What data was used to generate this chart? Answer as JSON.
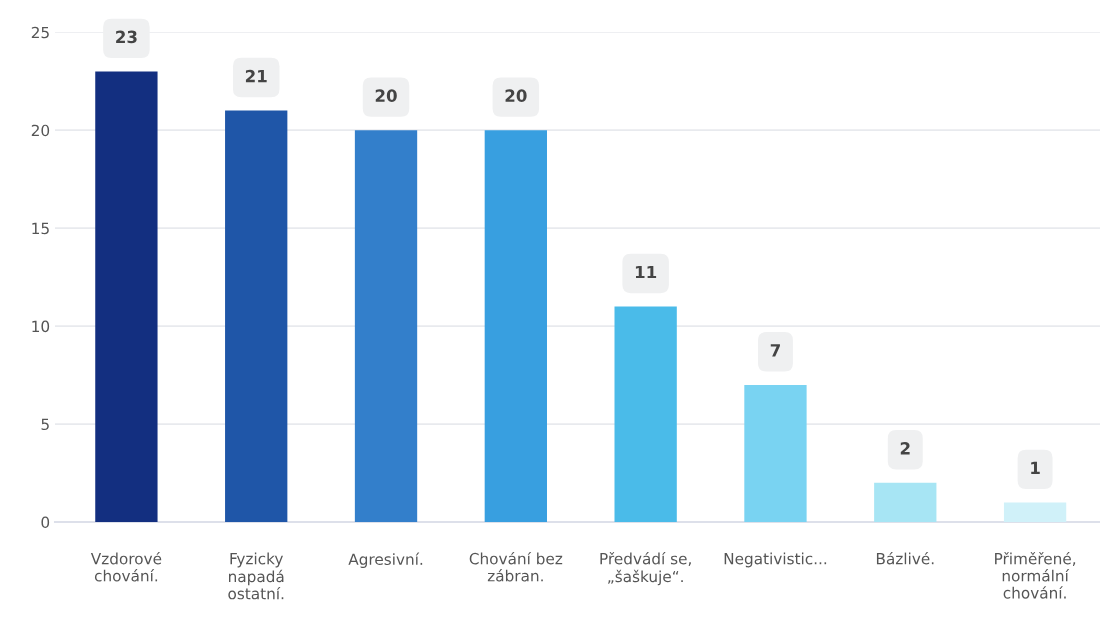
{
  "chart_data": {
    "type": "bar",
    "categories": [
      "Vzdorové\nchování.",
      "Fyzicky\nnapadá\nostatní.",
      "Agresivní.",
      "Chování bez\nzábran.",
      "Předvádí se,\n„šaškuje“.",
      "Negativistic...",
      "Bázlivé.",
      "Přiměřené,\nnormální\nchování."
    ],
    "values": [
      23,
      21,
      20,
      20,
      11,
      7,
      2,
      1
    ],
    "colors": [
      "#132f80",
      "#1f56a8",
      "#337fcb",
      "#389fe0",
      "#4abbe9",
      "#79d3f2",
      "#a7e5f4",
      "#d0f1f9"
    ],
    "ylim": [
      0,
      25
    ],
    "yticks": [
      0,
      5,
      10,
      15,
      20,
      25
    ],
    "grid": "y",
    "data_labels": true
  }
}
